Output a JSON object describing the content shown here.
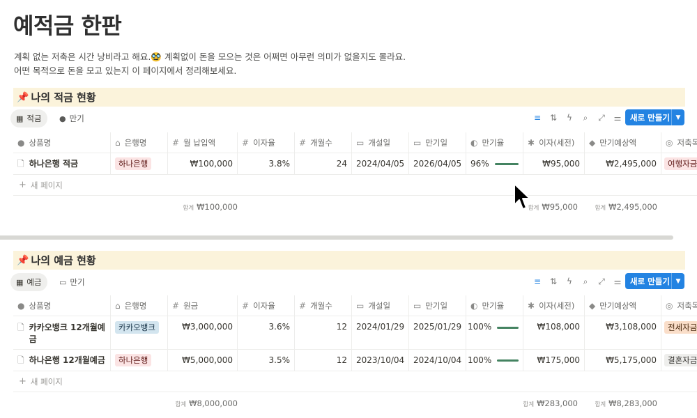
{
  "page": {
    "title": "예적금 한판",
    "intro_line1": "계획 없는 저축은 시간 낭비라고 해요.🥸 계획없이 돈을 모으는 것은 어쩌면 아무런 의미가 없을지도 몰라요.",
    "intro_line2": "어떤 목적으로 돈을 모고 있는지 이 페이지에서 정리해보세요."
  },
  "toolbar": {
    "icons": [
      "filter-icon",
      "sort-icon",
      "automation-icon",
      "search-icon",
      "expand-icon",
      "settings-icon"
    ],
    "new_label": "새로 만들기",
    "chevron": "⌄"
  },
  "installment": {
    "title": "나의 적금 현황",
    "tabs": [
      "적금",
      "만기"
    ],
    "columns": [
      "상품명",
      "은행명",
      "월 납입액",
      "이자율",
      "개월수",
      "개설일",
      "만기일",
      "만기율",
      "이자(세전)",
      "만기예상액",
      "저축목적"
    ],
    "rows": [
      {
        "name": "하나은행 적금",
        "bank": "하나은행",
        "amount": "₩100,000",
        "rate": "3.8%",
        "months": "24",
        "opened": "2024/04/05",
        "maturity": "2026/04/05",
        "progress_label": "96%",
        "progress": 0.96,
        "interest": "₩95,000",
        "expected": "₩2,495,000",
        "purpose": "여행자금"
      }
    ],
    "new_page": "새 페이지",
    "sum_key": "합계",
    "sum_amount": "₩100,000",
    "sum_interest": "₩95,000",
    "sum_expected": "₩2,495,000"
  },
  "deposit": {
    "title": "나의 예금 현황",
    "tabs": [
      "예금",
      "만기"
    ],
    "columns": [
      "상품명",
      "은행명",
      "원금",
      "이자율",
      "개월수",
      "개설일",
      "만기일",
      "만기율",
      "이자(세전)",
      "만기예상액",
      "저축목적"
    ],
    "rows": [
      {
        "name": "카카오뱅크 12개월예금",
        "bank": "카카오뱅크",
        "amount": "₩3,000,000",
        "rate": "3.6%",
        "months": "12",
        "opened": "2024/01/29",
        "maturity": "2025/01/29",
        "progress_label": "100%",
        "progress": 1.0,
        "interest": "₩108,000",
        "expected": "₩3,108,000",
        "purpose": "전세자금"
      },
      {
        "name": "하나은행 12개월예금",
        "bank": "하나은행",
        "amount": "₩5,000,000",
        "rate": "3.5%",
        "months": "12",
        "opened": "2023/10/04",
        "maturity": "2024/10/04",
        "progress_label": "100%",
        "progress": 1.0,
        "interest": "₩175,000",
        "expected": "₩5,175,000",
        "purpose": "결혼자금"
      }
    ],
    "new_page": "새 페이지",
    "sum_key": "합계",
    "sum_amount": "₩8,000,000",
    "sum_interest": "₩283,000",
    "sum_expected": "₩8,283,000"
  },
  "colors": {
    "accent": "#2383e2",
    "section_bg": "#fbf3db",
    "progress": "#448361"
  }
}
